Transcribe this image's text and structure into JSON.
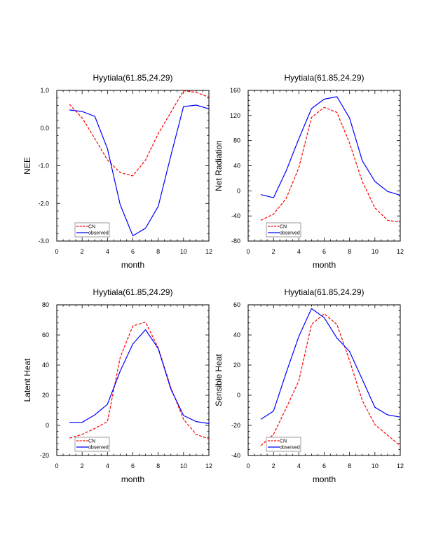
{
  "chart_data": [
    {
      "type": "line",
      "title": "Hyytiala(61.85,24.29)",
      "xlabel": "month",
      "ylabel": "NEE",
      "xlim": [
        0,
        12
      ],
      "ylim": [
        -3.0,
        1.0
      ],
      "xticks": [
        0,
        2,
        4,
        6,
        8,
        10,
        12
      ],
      "yticks": [
        -3.0,
        -2.0,
        -1.0,
        0.0,
        1.0
      ],
      "ytick_labels": [
        "-3.0",
        "-2.0",
        "-1.0",
        "0.0",
        "1.0"
      ],
      "x": [
        1,
        2,
        3,
        4,
        5,
        6,
        7,
        8,
        9,
        10,
        11,
        12
      ],
      "series": [
        {
          "name": "CN",
          "color": "#ff0000",
          "dash": true,
          "values": [
            0.63,
            0.27,
            -0.28,
            -0.85,
            -1.18,
            -1.27,
            -0.85,
            -0.15,
            0.42,
            0.99,
            0.95,
            0.82
          ]
        },
        {
          "name": "observed",
          "color": "#0000ff",
          "dash": false,
          "values": [
            0.48,
            0.44,
            0.31,
            -0.55,
            -2.03,
            -2.86,
            -2.66,
            -2.08,
            -0.73,
            0.57,
            0.61,
            0.51
          ]
        }
      ],
      "legend": [
        "CN",
        "observed"
      ],
      "legend_position": "bottom-left"
    },
    {
      "type": "line",
      "title": "Hyytiala(61.85,24.29)",
      "xlabel": "month",
      "ylabel": "Net Radiation",
      "xlim": [
        0,
        12
      ],
      "ylim": [
        -80,
        160
      ],
      "xticks": [
        0,
        2,
        4,
        6,
        8,
        10,
        12
      ],
      "yticks": [
        -80,
        -40,
        0,
        40,
        80,
        120,
        160
      ],
      "ytick_labels": [
        "-80",
        "-40",
        "0",
        "40",
        "80",
        "120",
        "160"
      ],
      "x": [
        1,
        2,
        3,
        4,
        5,
        6,
        7,
        8,
        9,
        10,
        11,
        12
      ],
      "series": [
        {
          "name": "CN",
          "color": "#ff0000",
          "dash": true,
          "values": [
            -47,
            -37,
            -12,
            37,
            117,
            133,
            125,
            76,
            15,
            -27,
            -47,
            -50
          ]
        },
        {
          "name": "observed",
          "color": "#0000ff",
          "dash": false,
          "values": [
            -6,
            -11,
            32,
            83,
            131,
            146,
            150,
            116,
            48,
            15,
            -1,
            -7
          ]
        }
      ],
      "legend": [
        "CN",
        "observed"
      ],
      "legend_position": "bottom-left"
    },
    {
      "type": "line",
      "title": "Hyytiala(61.85,24.29)",
      "xlabel": "month",
      "ylabel": "Latent Heat",
      "xlim": [
        0,
        12
      ],
      "ylim": [
        -20,
        80
      ],
      "xticks": [
        0,
        2,
        4,
        6,
        8,
        10,
        12
      ],
      "yticks": [
        -20,
        0,
        20,
        40,
        60,
        80
      ],
      "ytick_labels": [
        "-20",
        "0",
        "20",
        "40",
        "60",
        "80"
      ],
      "x": [
        1,
        2,
        3,
        4,
        5,
        6,
        7,
        8,
        9,
        10,
        11,
        12
      ],
      "series": [
        {
          "name": "CN",
          "color": "#ff0000",
          "dash": true,
          "values": [
            -8.5,
            -6,
            -2,
            2.5,
            45,
            66,
            68.5,
            51.5,
            25,
            4,
            -6,
            -9
          ]
        },
        {
          "name": "observed",
          "color": "#0000ff",
          "dash": false,
          "values": [
            2,
            2,
            7,
            14,
            36,
            54,
            63.5,
            51,
            24,
            6.5,
            2.5,
            1.2
          ]
        }
      ],
      "legend": [
        "CN",
        "observed"
      ],
      "legend_position": "bottom-left"
    },
    {
      "type": "line",
      "title": "Hyytiala(61.85,24.29)",
      "xlabel": "month",
      "ylabel": "Sensible Heat",
      "xlim": [
        0,
        12
      ],
      "ylim": [
        -40,
        60
      ],
      "xticks": [
        0,
        2,
        4,
        6,
        8,
        10,
        12
      ],
      "yticks": [
        -40,
        -20,
        0,
        20,
        40,
        60
      ],
      "ytick_labels": [
        "-40",
        "-20",
        "0",
        "20",
        "40",
        "60"
      ],
      "x": [
        1,
        2,
        3,
        4,
        5,
        6,
        7,
        8,
        9,
        10,
        11,
        12
      ],
      "series": [
        {
          "name": "CN",
          "color": "#ff0000",
          "dash": true,
          "values": [
            -33.5,
            -26,
            -8.5,
            9.5,
            47,
            54,
            47,
            23,
            -3.5,
            -19.5,
            -26.5,
            -33.5
          ]
        },
        {
          "name": "observed",
          "color": "#0000ff",
          "dash": false,
          "values": [
            -16,
            -10.5,
            15,
            39,
            57.5,
            51.5,
            38,
            29,
            10.5,
            -8,
            -13,
            -14.5
          ]
        }
      ],
      "legend": [
        "CN",
        "observed"
      ],
      "legend_position": "bottom-left"
    }
  ]
}
